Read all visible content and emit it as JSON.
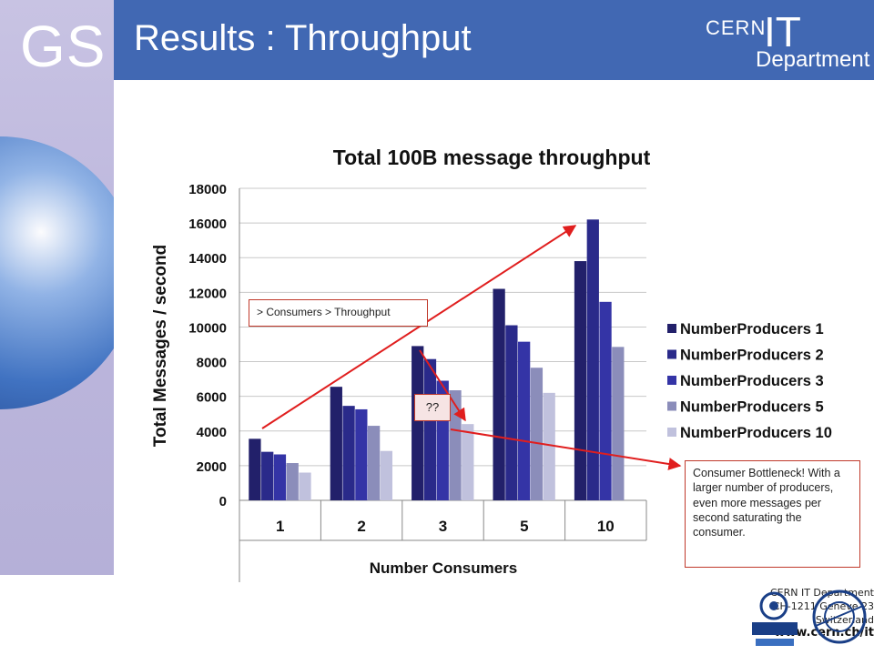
{
  "header": {
    "logo_text": "GS",
    "title": "Results : Throughput",
    "cern_logo": {
      "line1": "CERN",
      "line2": "IT",
      "line3": "Department"
    }
  },
  "footer": {
    "lines": [
      "CERN IT Department",
      "CH-1211 Genève 23",
      "Switzerland"
    ],
    "url": "www.cern.ch/it"
  },
  "colors": {
    "header_bg": "#4168b3",
    "left_panel": "#bdb7dd",
    "series": [
      "#22206a",
      "#2a2a8a",
      "#3434a6",
      "#8b8dba",
      "#c0c1dd"
    ],
    "annotation": "#e01e1e"
  },
  "chart_data": {
    "type": "bar",
    "title": "Total 100B message throughput",
    "xlabel": "Number Consumers",
    "ylabel": "Total Messages / second",
    "categories": [
      "1",
      "2",
      "3",
      "5",
      "10"
    ],
    "yticks": [
      "0",
      "2000",
      "4000",
      "6000",
      "8000",
      "10000",
      "12000",
      "14000",
      "16000",
      "18000"
    ],
    "ylim": [
      0,
      18000
    ],
    "grid": true,
    "legend_position": "right",
    "series": [
      {
        "name": "NumberProducers 1",
        "values": [
          3550,
          6550,
          8900,
          12200,
          13800
        ]
      },
      {
        "name": "NumberProducers 2",
        "values": [
          2800,
          5450,
          8150,
          10100,
          16200
        ]
      },
      {
        "name": "NumberProducers 3",
        "values": [
          2650,
          5250,
          6900,
          9150,
          11450
        ]
      },
      {
        "name": "NumberProducers 5",
        "values": [
          2150,
          4300,
          6350,
          7650,
          8850
        ]
      },
      {
        "name": "NumberProducers 10",
        "values": [
          1600,
          2850,
          4400,
          6200,
          null
        ]
      }
    ]
  },
  "annotations": {
    "consumers_box": "> Consumers > Throughput",
    "qq_box": "??",
    "bottleneck_box": "Consumer Bottleneck! With a larger number of producers,  even more messages per second saturating the consumer."
  }
}
